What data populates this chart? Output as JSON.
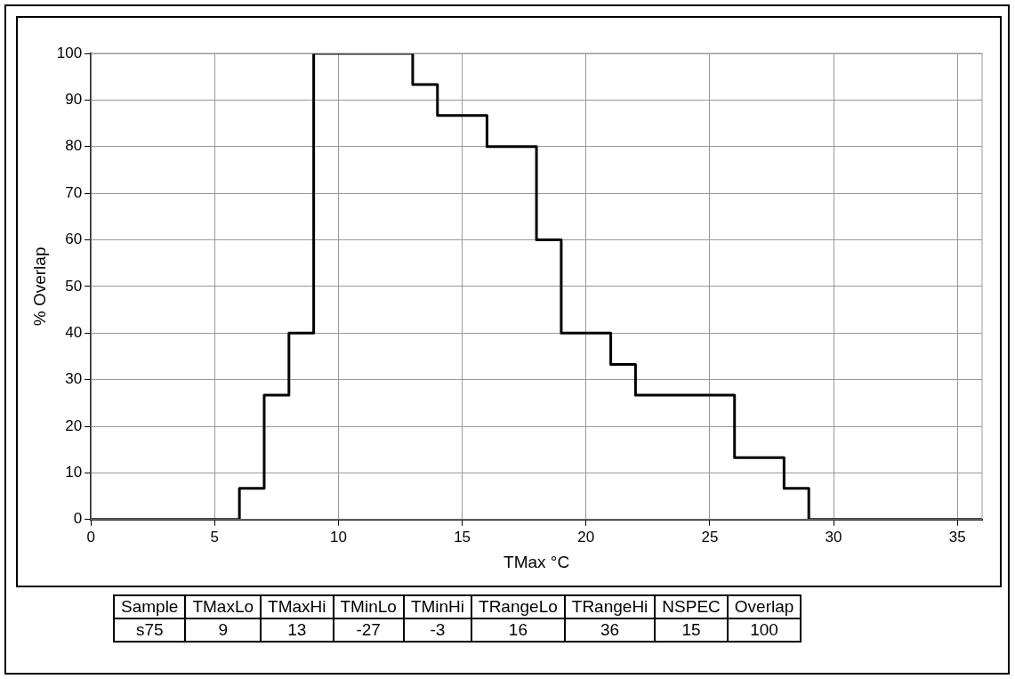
{
  "chart_data": {
    "type": "step",
    "xlabel": "TMax °C",
    "ylabel": "% Overlap",
    "x": [
      0,
      6,
      7,
      8,
      9,
      13,
      14,
      16,
      18,
      19,
      21,
      22,
      26,
      28,
      29,
      36
    ],
    "series": [
      {
        "color": "#000000",
        "values": [
          0,
          6.7,
          26.7,
          40,
          100,
          93.3,
          86.7,
          80,
          60,
          40,
          33.3,
          26.7,
          13.3,
          6.7,
          0,
          0
        ]
      }
    ],
    "xlim": [
      0,
      36
    ],
    "xticks": [
      0,
      5,
      10,
      15,
      20,
      25,
      30,
      35
    ],
    "ylim": [
      0,
      100
    ],
    "yticks": [
      0,
      10,
      20,
      30,
      40,
      50,
      60,
      70,
      80,
      90,
      100
    ],
    "grid": true,
    "legend": false,
    "annotations": [
      "Sample",
      "TMaxLo",
      "TMaxHi",
      "TMinLo",
      "TMinHi",
      "TRangeLo",
      "TRangeHi",
      "NSPEC",
      "Overlap",
      "s75",
      "9",
      "13",
      "-27",
      "-3",
      "16",
      "36",
      "15",
      "100"
    ]
  }
}
